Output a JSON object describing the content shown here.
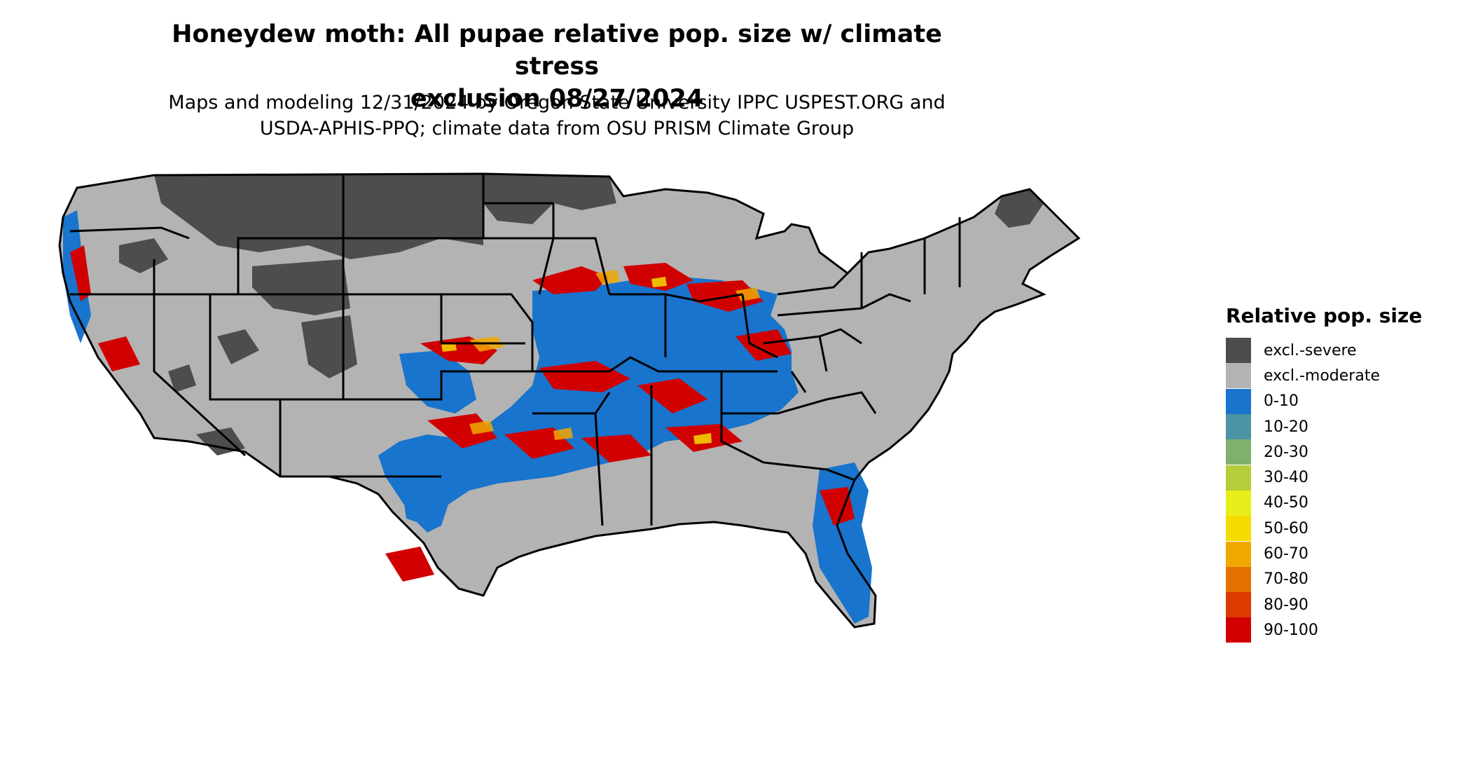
{
  "title": "Honeydew moth: All pupae relative pop. size w/ climate stress\nexclusion 08/27/2024",
  "subtitle": "Maps and modeling 12/31/2024 by Oregon State University IPPC USPEST.ORG and\nUSDA-APHIS-PPQ; climate data from OSU PRISM Climate Group",
  "legend": {
    "title": "Relative pop. size",
    "items": [
      {
        "label": "excl.-severe",
        "color": "#4d4d4d"
      },
      {
        "label": "excl.-moderate",
        "color": "#b3b3b3"
      },
      {
        "label": "0-10",
        "color": "#1874cd"
      },
      {
        "label": "10-20",
        "color": "#4a94a5"
      },
      {
        "label": "20-30",
        "color": "#7fb06d"
      },
      {
        "label": "30-40",
        "color": "#b5cd3a"
      },
      {
        "label": "40-50",
        "color": "#e8ee19"
      },
      {
        "label": "50-60",
        "color": "#f5dc00"
      },
      {
        "label": "60-70",
        "color": "#f0a800"
      },
      {
        "label": "70-80",
        "color": "#e57200"
      },
      {
        "label": "80-90",
        "color": "#db3a00"
      },
      {
        "label": "90-100",
        "color": "#d10000"
      }
    ]
  }
}
